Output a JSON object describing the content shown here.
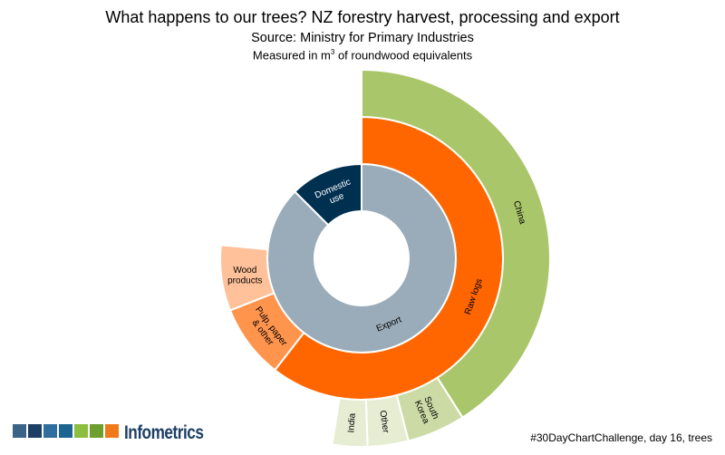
{
  "header": {
    "title": "What happens to our trees? NZ forestry harvest, processing and export",
    "subtitle": "Source: Ministry for Primary Industries",
    "measure_prefix": "Measured in m",
    "measure_sup": "3",
    "measure_suffix": " of roundwood equivalents"
  },
  "chart_data": {
    "type": "sunburst",
    "title": "What happens to our trees? NZ forestry harvest, processing and export",
    "subtitle": "Source: Ministry for Primary Industries",
    "unit": "m3 of roundwood equivalents",
    "rings": [
      {
        "level": 1,
        "segments": [
          {
            "name": "Export",
            "share": 0.875,
            "color": "#9aabb9",
            "text_color": "#000000"
          },
          {
            "name": "Domestic use",
            "share": 0.125,
            "color": "#003050",
            "text_color": "#ffffff"
          }
        ]
      },
      {
        "level": 2,
        "segments": [
          {
            "name": "Raw logs",
            "parent": "Export",
            "share": 0.605,
            "color": "#ff6600"
          },
          {
            "name": "Pulp, paper & other",
            "parent": "Export",
            "share": 0.085,
            "color": "#ff944d"
          },
          {
            "name": "Wood products",
            "parent": "Export",
            "share": 0.075,
            "color": "#ffc199"
          }
        ]
      },
      {
        "level": 3,
        "segments": [
          {
            "name": "China",
            "parent": "Raw logs",
            "share": 0.41,
            "color": "#aac66a"
          },
          {
            "name": "South Korea",
            "parent": "Raw logs",
            "share": 0.05,
            "color": "#ccdba5"
          },
          {
            "name": "Other",
            "parent": "Raw logs",
            "share": 0.035,
            "color": "#e6edd3"
          },
          {
            "name": "India",
            "parent": "Raw logs",
            "share": 0.03,
            "color": "#e6edd3"
          }
        ]
      }
    ]
  },
  "logo": {
    "text": "Infometrics",
    "colors": [
      "#3a6386",
      "#1d3f66",
      "#2f6e9e",
      "#1e6491",
      "#8cbf3f",
      "#6e9e2e",
      "#f07a1a"
    ]
  },
  "footnote": "#30DayChartChallenge, day 16, trees"
}
